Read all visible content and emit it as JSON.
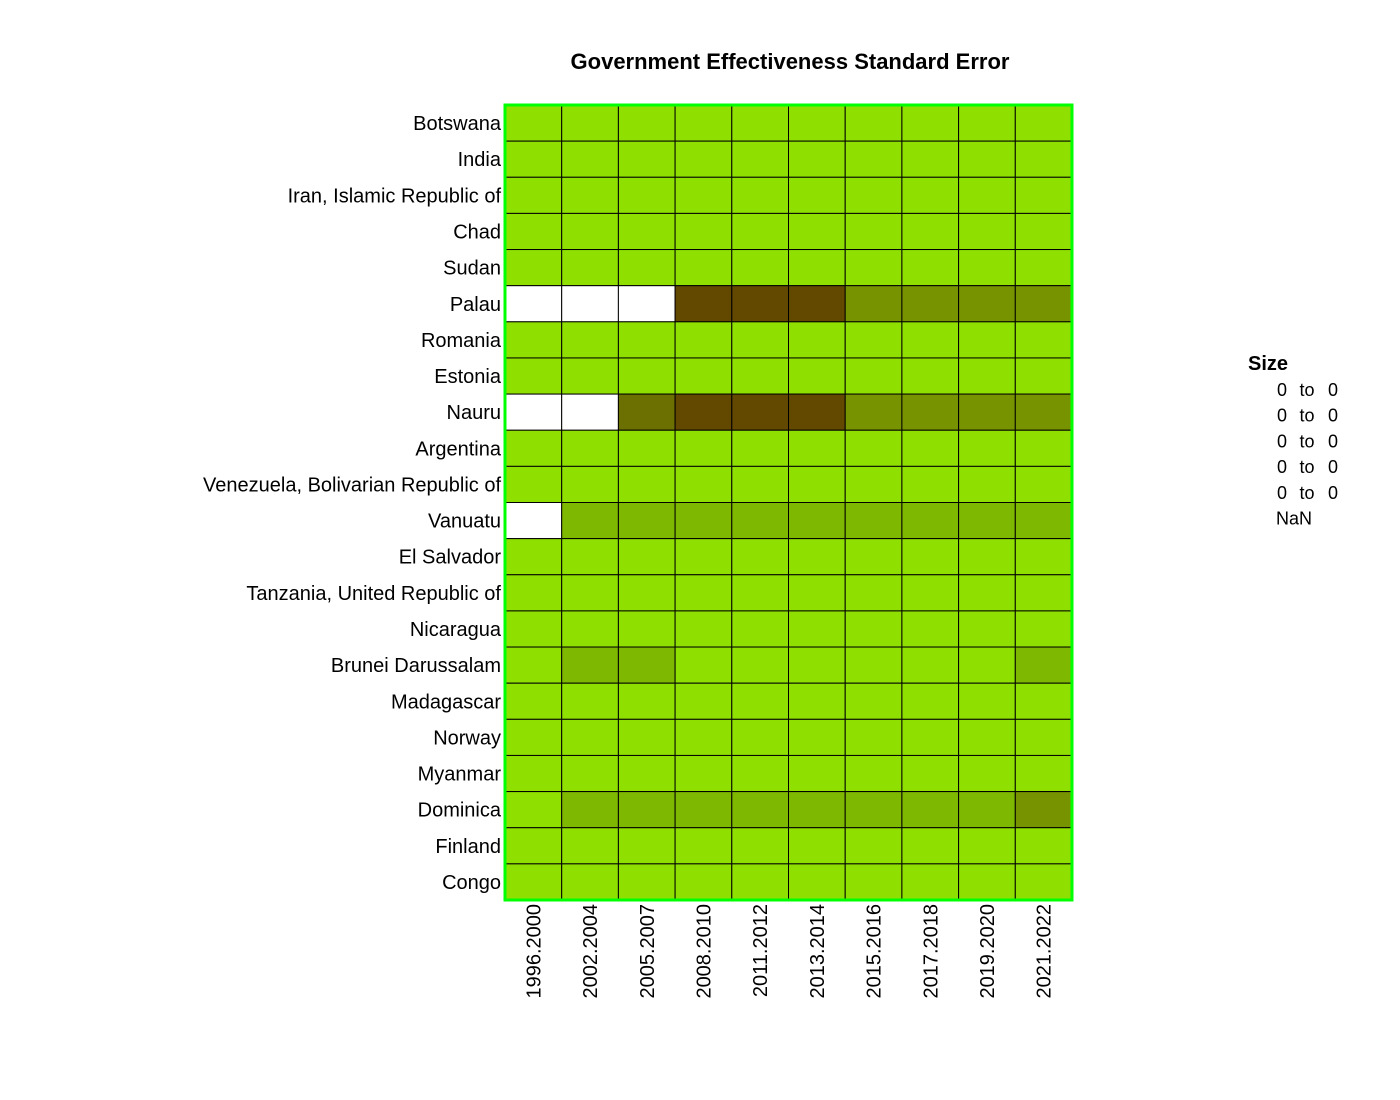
{
  "chart_data": {
    "type": "heatmap",
    "title": "Government Effectiveness Standard Error",
    "rows": [
      "Botswana",
      "India",
      "Iran, Islamic Republic of",
      "Chad",
      "Sudan",
      "Palau",
      "Romania",
      "Estonia",
      "Nauru",
      "Argentina",
      "Venezuela, Bolivarian Republic of",
      "Vanuatu",
      "El Salvador",
      "Tanzania, United Republic of",
      "Nicaragua",
      "Brunei Darussalam",
      "Madagascar",
      "Norway",
      "Myanmar",
      "Dominica",
      "Finland",
      "Congo"
    ],
    "columns": [
      "1996.2000",
      "2002.2004",
      "2005.2007",
      "2008.2010",
      "2011.2012",
      "2013.2014",
      "2015.2016",
      "2017.2018",
      "2019.2020",
      "2021.2022"
    ],
    "values": [
      [
        0,
        0,
        0,
        0,
        0,
        0,
        0,
        0,
        0,
        0
      ],
      [
        0,
        0,
        0,
        0,
        0,
        0,
        0,
        0,
        0,
        0
      ],
      [
        0,
        0,
        0,
        0,
        0,
        0,
        0,
        0,
        0,
        0
      ],
      [
        0,
        0,
        0,
        0,
        0,
        0,
        0,
        0,
        0,
        0
      ],
      [
        0,
        0,
        0,
        0,
        0,
        0,
        0,
        0,
        0,
        0
      ],
      [
        null,
        null,
        null,
        4,
        4,
        4,
        2,
        2,
        2,
        2
      ],
      [
        0,
        0,
        0,
        0,
        0,
        0,
        0,
        0,
        0,
        0
      ],
      [
        0,
        0,
        0,
        0,
        0,
        0,
        0,
        0,
        0,
        0
      ],
      [
        null,
        null,
        3,
        4,
        4,
        4,
        2,
        2,
        2,
        2
      ],
      [
        0,
        0,
        0,
        0,
        0,
        0,
        0,
        0,
        0,
        0
      ],
      [
        0,
        0,
        0,
        0,
        0,
        0,
        0,
        0,
        0,
        0
      ],
      [
        null,
        1,
        1,
        1,
        1,
        1,
        1,
        1,
        1,
        1
      ],
      [
        0,
        0,
        0,
        0,
        0,
        0,
        0,
        0,
        0,
        0
      ],
      [
        0,
        0,
        0,
        0,
        0,
        0,
        0,
        0,
        0,
        0
      ],
      [
        0,
        0,
        0,
        0,
        0,
        0,
        0,
        0,
        0,
        0
      ],
      [
        0,
        1,
        1,
        0,
        0,
        0,
        0,
        0,
        0,
        1
      ],
      [
        0,
        0,
        0,
        0,
        0,
        0,
        0,
        0,
        0,
        0
      ],
      [
        0,
        0,
        0,
        0,
        0,
        0,
        0,
        0,
        0,
        0
      ],
      [
        0,
        0,
        0,
        0,
        0,
        0,
        0,
        0,
        0,
        0
      ],
      [
        0,
        1,
        1,
        1,
        1,
        1,
        1,
        1,
        1,
        2
      ],
      [
        0,
        0,
        0,
        0,
        0,
        0,
        0,
        0,
        0,
        0
      ],
      [
        0,
        0,
        0,
        0,
        0,
        0,
        0,
        0,
        0,
        0
      ]
    ],
    "value_note": "values are color-class indices 0..4 matching legend entries; null = NaN",
    "class_colors": [
      "#8fe000",
      "#7fb800",
      "#779400",
      "#6b7000",
      "#634800"
    ],
    "nan_color": "#ffffff",
    "border_color": "#00ff00",
    "grid_color": "#000000",
    "legend": {
      "title": "Size",
      "placement": "right",
      "entries": [
        {
          "from": "0",
          "sep": "to",
          "to": "0"
        },
        {
          "from": "0",
          "sep": "to",
          "to": "0"
        },
        {
          "from": "0",
          "sep": "to",
          "to": "0"
        },
        {
          "from": "0",
          "sep": "to",
          "to": "0"
        },
        {
          "from": "0",
          "sep": "to",
          "to": "0"
        }
      ],
      "nan_label": "NaN"
    }
  }
}
